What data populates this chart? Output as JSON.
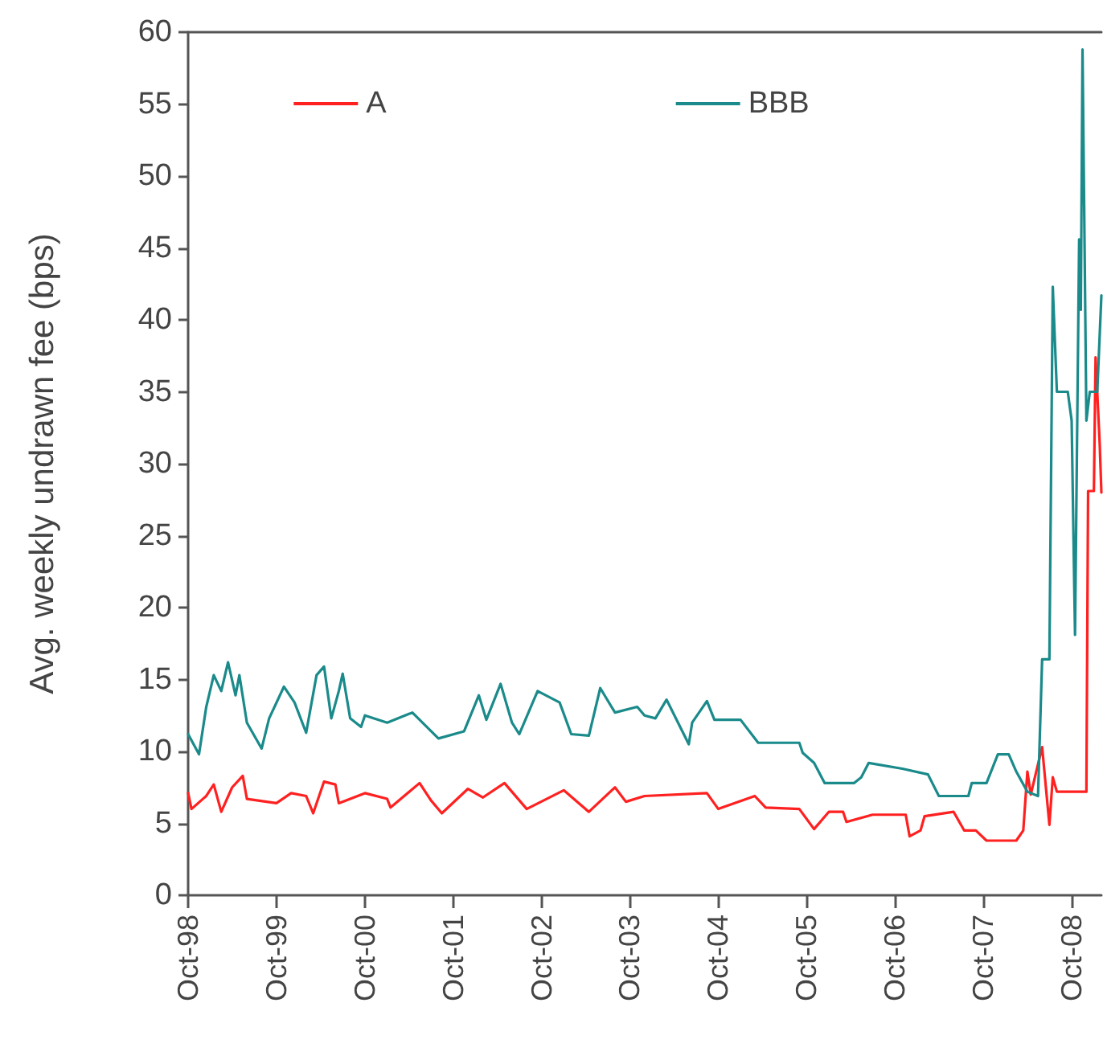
{
  "chart_data": {
    "type": "line",
    "ylabel": "Avg. weekly undrawn fee (bps)",
    "legend": "top",
    "grid": false,
    "marker": "none",
    "xlim": [
      "1998-10-01",
      "2009-02-01"
    ],
    "xticks": [
      {
        "value": "1998-10",
        "label": "Oct-98"
      },
      {
        "value": "1999-10",
        "label": "Oct-99"
      },
      {
        "value": "2000-10",
        "label": "Oct-00"
      },
      {
        "value": "2001-10",
        "label": "Oct-01"
      },
      {
        "value": "2002-10",
        "label": "Oct-02"
      },
      {
        "value": "2003-10",
        "label": "Oct-03"
      },
      {
        "value": "2004-10",
        "label": "Oct-04"
      },
      {
        "value": "2005-10",
        "label": "Oct-05"
      },
      {
        "value": "2006-10",
        "label": "Oct-06"
      },
      {
        "value": "2007-10",
        "label": "Oct-07"
      },
      {
        "value": "2008-10",
        "label": "Oct-08"
      }
    ],
    "ylim": [
      0,
      60
    ],
    "yticks": [
      0,
      5,
      10,
      15,
      20,
      25,
      30,
      35,
      40,
      45,
      50,
      55,
      60
    ],
    "series": [
      {
        "name": "A",
        "color": "#ff2020",
        "x": [
          "1998-10-01",
          "1998-10-15",
          "1998-12-15",
          "1999-01-15",
          "1999-02-15",
          "1999-04-01",
          "1999-05-15",
          "1999-06-01",
          "1999-10-01",
          "1999-12-01",
          "2000-02-01",
          "2000-03-01",
          "2000-04-15",
          "2000-06-01",
          "2000-06-15",
          "2000-10-01",
          "2001-01-01",
          "2001-01-15",
          "2001-05-15",
          "2001-07-01",
          "2001-08-15",
          "2001-12-01",
          "2002-02-01",
          "2002-05-01",
          "2002-08-01",
          "2003-01-01",
          "2003-04-15",
          "2003-08-01",
          "2003-09-15",
          "2003-12-01",
          "2004-08-15",
          "2004-10-01",
          "2005-03-01",
          "2005-04-15",
          "2005-09-01",
          "2005-11-01",
          "2006-01-01",
          "2006-03-01",
          "2006-03-15",
          "2006-07-01",
          "2006-11-15",
          "2006-12-01",
          "2007-01-15",
          "2007-02-01",
          "2007-06-01",
          "2007-07-15",
          "2007-09-01",
          "2007-10-15",
          "2008-02-15",
          "2008-03-15",
          "2008-04-01",
          "2008-04-15",
          "2008-06-01",
          "2008-07-01",
          "2008-07-15",
          "2008-08-01",
          "2008-12-01",
          "2008-12-08",
          "2009-01-01",
          "2009-01-08",
          "2009-01-25",
          "2009-02-01"
        ],
        "values": [
          7.1,
          6.0,
          6.9,
          7.7,
          5.8,
          7.5,
          8.3,
          6.7,
          6.4,
          7.1,
          6.9,
          5.7,
          7.9,
          7.7,
          6.4,
          7.1,
          6.7,
          6.1,
          7.8,
          6.6,
          5.7,
          7.4,
          6.8,
          7.8,
          6.0,
          7.3,
          5.8,
          7.5,
          6.5,
          6.9,
          7.1,
          6.0,
          6.9,
          6.1,
          6.0,
          4.6,
          5.8,
          5.8,
          5.1,
          5.6,
          5.6,
          4.1,
          4.5,
          5.5,
          5.8,
          4.5,
          4.5,
          3.8,
          3.8,
          4.5,
          8.6,
          7.0,
          10.3,
          4.9,
          8.2,
          7.2,
          7.2,
          28.1,
          28.1,
          37.4,
          31.4,
          28
        ]
      },
      {
        "name": "BBB",
        "color": "#1a8a8a",
        "x": [
          "1998-10-01",
          "1998-11-15",
          "1998-12-15",
          "1999-01-15",
          "1999-02-15",
          "1999-03-15",
          "1999-04-15",
          "1999-05-01",
          "1999-06-01",
          "1999-08-01",
          "1999-09-01",
          "1999-11-01",
          "1999-12-15",
          "2000-02-01",
          "2000-03-15",
          "2000-04-15",
          "2000-05-15",
          "2000-06-15",
          "2000-07-01",
          "2000-08-01",
          "2000-09-15",
          "2000-10-01",
          "2001-01-01",
          "2001-04-15",
          "2001-08-01",
          "2001-11-15",
          "2002-01-15",
          "2002-02-15",
          "2002-04-15",
          "2002-06-01",
          "2002-07-01",
          "2002-09-15",
          "2002-12-15",
          "2003-02-01",
          "2003-04-15",
          "2003-06-01",
          "2003-08-01",
          "2003-11-01",
          "2003-12-01",
          "2004-01-15",
          "2004-03-01",
          "2004-06-01",
          "2004-06-15",
          "2004-08-15",
          "2004-09-15",
          "2005-01-01",
          "2005-03-15",
          "2005-09-01",
          "2005-09-15",
          "2005-11-01",
          "2005-12-15",
          "2006-04-15",
          "2006-05-15",
          "2006-06-15",
          "2006-11-01",
          "2007-02-15",
          "2007-04-01",
          "2007-08-01",
          "2007-08-15",
          "2007-10-15",
          "2007-12-01",
          "2008-01-15",
          "2008-02-15",
          "2008-04-01",
          "2008-05-15",
          "2008-06-01",
          "2008-07-01",
          "2008-07-15",
          "2008-08-01",
          "2008-09-15",
          "2008-10-01",
          "2008-10-15",
          "2008-11-01",
          "2008-11-08",
          "2008-11-15",
          "2008-12-01",
          "2008-12-15",
          "2009-01-15",
          "2009-02-01"
        ],
        "values": [
          11.2,
          9.8,
          13.1,
          15.3,
          14.2,
          16.2,
          13.9,
          15.3,
          12,
          10.2,
          12.3,
          14.5,
          13.4,
          11.3,
          15.3,
          15.9,
          12.3,
          14.2,
          15.4,
          12.3,
          11.7,
          12.5,
          12,
          12.7,
          10.9,
          11.4,
          13.9,
          12.2,
          14.7,
          12,
          11.2,
          14.2,
          13.4,
          11.2,
          11.1,
          14.4,
          12.7,
          13.1,
          12.5,
          12.3,
          13.6,
          10.5,
          12,
          13.5,
          12.2,
          12.2,
          10.6,
          10.6,
          9.9,
          9.2,
          7.8,
          7.8,
          8.2,
          9.2,
          8.8,
          8.4,
          6.9,
          6.9,
          7.8,
          7.8,
          9.8,
          9.8,
          8.6,
          7.2,
          6.9,
          16.4,
          16.4,
          42.3,
          35,
          35,
          33,
          18.1,
          45.6,
          40.7,
          58.8,
          33,
          35,
          35,
          41.7
        ]
      }
    ]
  }
}
